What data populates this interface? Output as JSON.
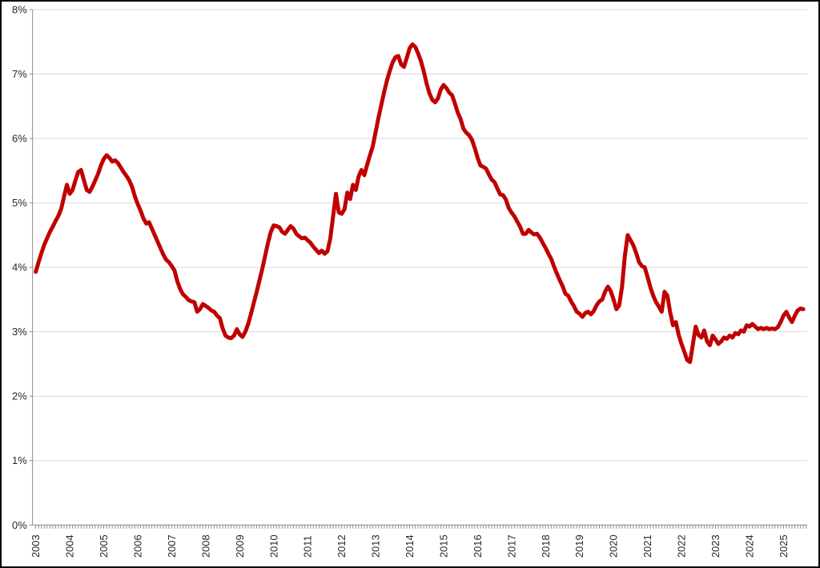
{
  "chart_data": {
    "type": "line",
    "title": "",
    "xlabel": "",
    "ylabel": "",
    "unit": "%",
    "ylim": [
      0,
      8
    ],
    "grid": true,
    "legend": false,
    "y_tick_labels": [
      "0%",
      "1%",
      "2%",
      "3%",
      "4%",
      "5%",
      "6%",
      "7%",
      "8%"
    ],
    "x_tick_labels": [
      "2003",
      "2004",
      "2005",
      "2006",
      "2007",
      "2008",
      "2009",
      "2010",
      "2011",
      "2012",
      "2013",
      "2014",
      "2015",
      "2016",
      "2017",
      "2018",
      "2019",
      "2020",
      "2021",
      "2022",
      "2023",
      "2024",
      "2025"
    ],
    "x_start": "2003-01",
    "x_interval": "month",
    "series": [
      {
        "name": "",
        "values": [
          3.93,
          4.08,
          4.22,
          4.35,
          4.45,
          4.55,
          4.63,
          4.72,
          4.8,
          4.91,
          5.1,
          5.28,
          5.14,
          5.2,
          5.35,
          5.48,
          5.51,
          5.35,
          5.2,
          5.17,
          5.25,
          5.35,
          5.45,
          5.58,
          5.68,
          5.74,
          5.7,
          5.64,
          5.66,
          5.62,
          5.55,
          5.48,
          5.42,
          5.35,
          5.25,
          5.1,
          4.98,
          4.88,
          4.76,
          4.68,
          4.7,
          4.6,
          4.5,
          4.4,
          4.3,
          4.2,
          4.12,
          4.08,
          4.02,
          3.95,
          3.78,
          3.66,
          3.58,
          3.54,
          3.49,
          3.47,
          3.46,
          3.31,
          3.35,
          3.43,
          3.4,
          3.37,
          3.33,
          3.31,
          3.25,
          3.21,
          3.05,
          2.94,
          2.91,
          2.9,
          2.94,
          3.04,
          2.96,
          2.92,
          3.0,
          3.12,
          3.28,
          3.45,
          3.62,
          3.8,
          3.98,
          4.18,
          4.38,
          4.55,
          4.65,
          4.64,
          4.62,
          4.55,
          4.52,
          4.58,
          4.64,
          4.6,
          4.52,
          4.48,
          4.45,
          4.46,
          4.42,
          4.38,
          4.32,
          4.27,
          4.22,
          4.26,
          4.21,
          4.25,
          4.45,
          4.8,
          5.14,
          4.85,
          4.83,
          4.9,
          5.16,
          5.06,
          5.28,
          5.2,
          5.41,
          5.51,
          5.43,
          5.59,
          5.74,
          5.88,
          6.1,
          6.32,
          6.52,
          6.72,
          6.9,
          7.05,
          7.18,
          7.26,
          7.28,
          7.15,
          7.11,
          7.25,
          7.4,
          7.46,
          7.42,
          7.32,
          7.2,
          7.04,
          6.85,
          6.7,
          6.6,
          6.56,
          6.62,
          6.76,
          6.83,
          6.78,
          6.71,
          6.67,
          6.54,
          6.4,
          6.3,
          6.15,
          6.09,
          6.05,
          5.98,
          5.85,
          5.7,
          5.58,
          5.56,
          5.53,
          5.44,
          5.36,
          5.32,
          5.22,
          5.13,
          5.12,
          5.05,
          4.92,
          4.85,
          4.79,
          4.71,
          4.63,
          4.52,
          4.52,
          4.58,
          4.54,
          4.51,
          4.52,
          4.46,
          4.38,
          4.3,
          4.21,
          4.13,
          4.01,
          3.9,
          3.8,
          3.71,
          3.59,
          3.56,
          3.47,
          3.4,
          3.31,
          3.28,
          3.23,
          3.29,
          3.31,
          3.27,
          3.32,
          3.41,
          3.47,
          3.5,
          3.62,
          3.7,
          3.63,
          3.5,
          3.35,
          3.41,
          3.7,
          4.18,
          4.5,
          4.42,
          4.34,
          4.22,
          4.08,
          4.02,
          4.0,
          3.85,
          3.69,
          3.56,
          3.46,
          3.39,
          3.31,
          3.62,
          3.56,
          3.3,
          3.1,
          3.15,
          2.95,
          2.81,
          2.69,
          2.56,
          2.53,
          2.8,
          3.08,
          2.95,
          2.91,
          3.02,
          2.85,
          2.79,
          2.94,
          2.88,
          2.81,
          2.85,
          2.91,
          2.89,
          2.94,
          2.91,
          2.98,
          2.96,
          3.02,
          3.0,
          3.1,
          3.08,
          3.12,
          3.08,
          3.04,
          3.06,
          3.04,
          3.06,
          3.04,
          3.05,
          3.04,
          3.07,
          3.15,
          3.25,
          3.31,
          3.22,
          3.15,
          3.25,
          3.33,
          3.36,
          3.35
        ]
      }
    ],
    "colors": {
      "line": "#C00000",
      "gridline": "#D9D9D9",
      "axis": "#8C8C8C",
      "label": "#262626",
      "border": "#000000",
      "background": "#FFFFFF"
    }
  }
}
